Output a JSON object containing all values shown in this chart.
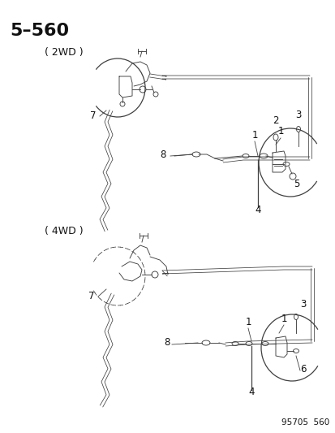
{
  "title": "5–560",
  "subtitle_2wd": "( 2WD )",
  "subtitle_4wd": "( 4WD )",
  "footer": "95705  560",
  "bg_color": "#ffffff",
  "line_color": "#404040",
  "text_color": "#111111",
  "title_fontsize": 16,
  "label_fontsize": 8.5,
  "footer_fontsize": 7.5
}
